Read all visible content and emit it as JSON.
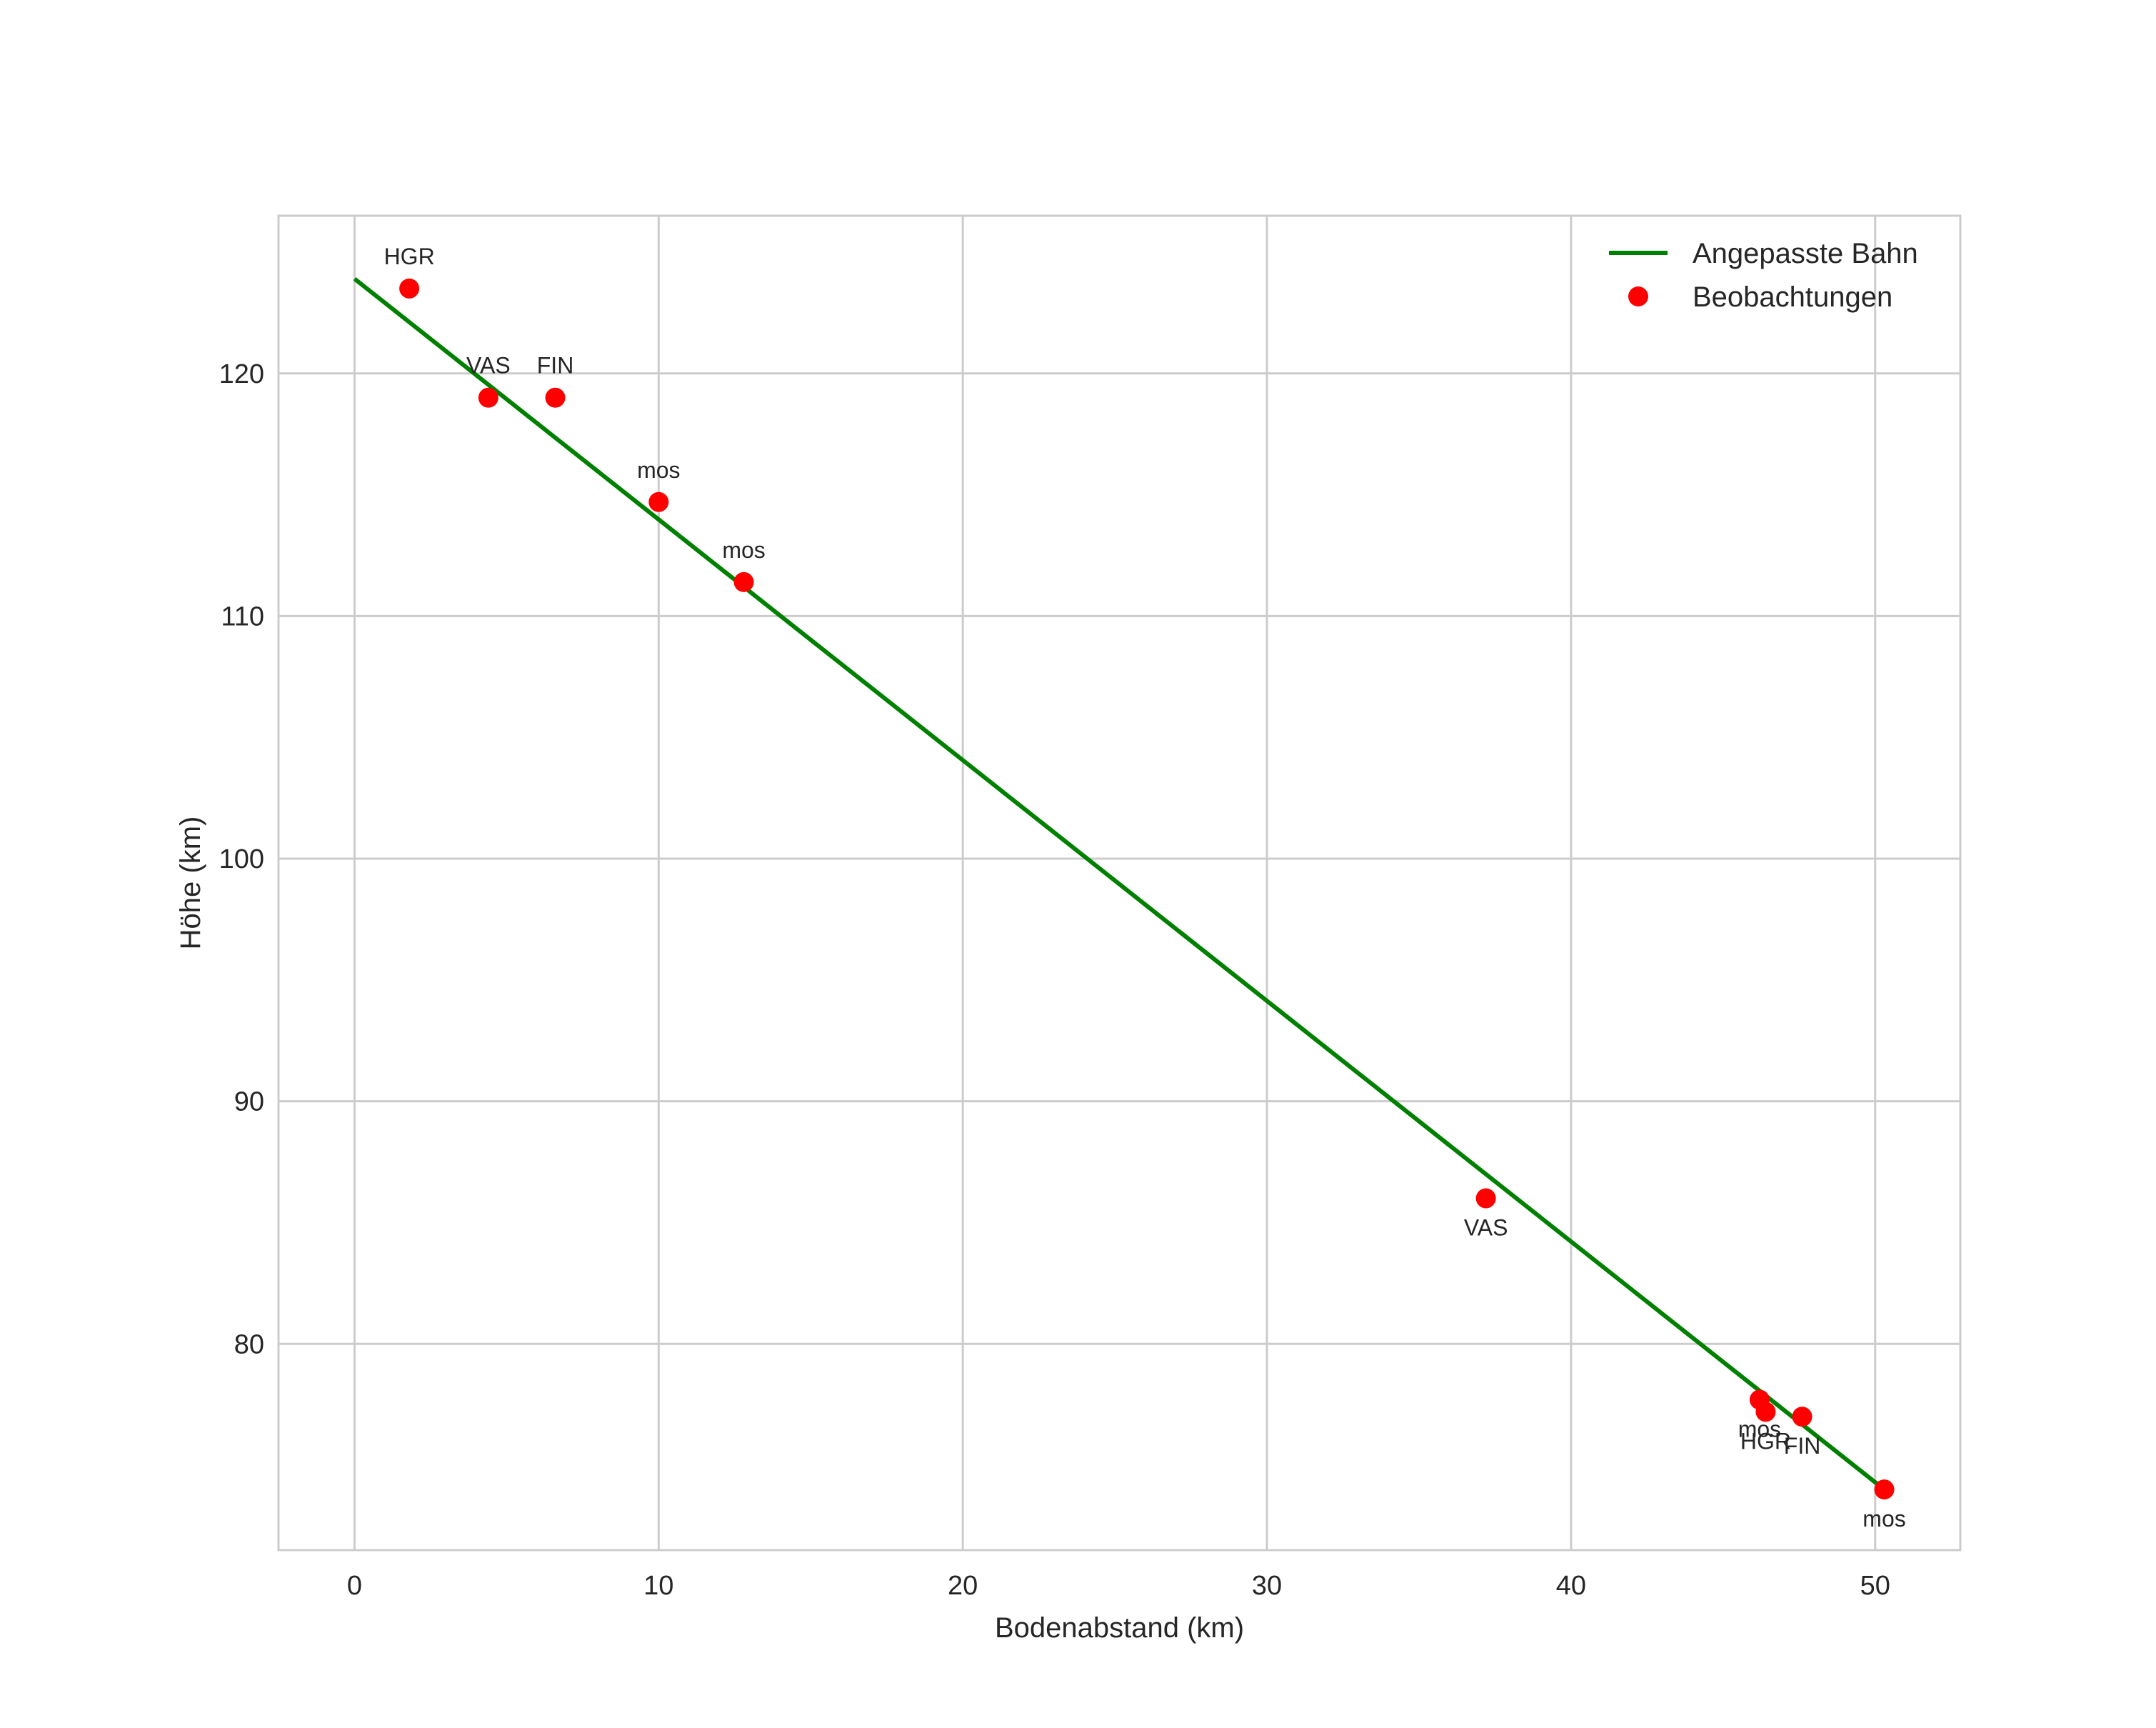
{
  "chart_data": {
    "type": "scatter",
    "title": "",
    "xlabel": "Bodenabstand (km)",
    "ylabel": "Höhe (km)",
    "xlim": [
      -2.5,
      52.8
    ],
    "ylim": [
      71.5,
      126.5
    ],
    "grid": true,
    "legend_position": "upper right",
    "x_ticks": [
      0,
      10,
      20,
      30,
      40,
      50
    ],
    "y_ticks": [
      80,
      90,
      100,
      110,
      120
    ],
    "series": [
      {
        "name": "Angepasste Bahn",
        "kind": "line",
        "color": "#008000",
        "x": [
          0,
          50.3
        ],
        "y": [
          123.9,
          74.0
        ]
      },
      {
        "name": "Beobachtungen",
        "kind": "scatter",
        "color": "#ff0000",
        "points": [
          {
            "x": 1.8,
            "y": 123.5,
            "label": "HGR",
            "label_pos": "above"
          },
          {
            "x": 4.4,
            "y": 119.0,
            "label": "VAS",
            "label_pos": "above"
          },
          {
            "x": 6.6,
            "y": 119.0,
            "label": "FIN",
            "label_pos": "above"
          },
          {
            "x": 10.0,
            "y": 114.7,
            "label": "mos",
            "label_pos": "above"
          },
          {
            "x": 12.8,
            "y": 111.4,
            "label": "mos",
            "label_pos": "above"
          },
          {
            "x": 37.2,
            "y": 86.0,
            "label": "VAS",
            "label_pos": "below"
          },
          {
            "x": 46.2,
            "y": 77.7,
            "label": "mos",
            "label_pos": "below"
          },
          {
            "x": 46.4,
            "y": 77.2,
            "label": "HGR",
            "label_pos": "below"
          },
          {
            "x": 47.6,
            "y": 77.0,
            "label": "FIN",
            "label_pos": "below"
          },
          {
            "x": 50.3,
            "y": 74.0,
            "label": "mos",
            "label_pos": "below"
          }
        ]
      }
    ]
  },
  "legend": {
    "items": [
      {
        "label": "Angepasste Bahn",
        "icon": "line-icon"
      },
      {
        "label": "Beobachtungen",
        "icon": "dot-icon"
      }
    ]
  },
  "colors": {
    "grid": "#cccccc",
    "frame": "#cccccc",
    "fit_line": "#008000",
    "points": "#ff0000",
    "text": "#262626"
  }
}
